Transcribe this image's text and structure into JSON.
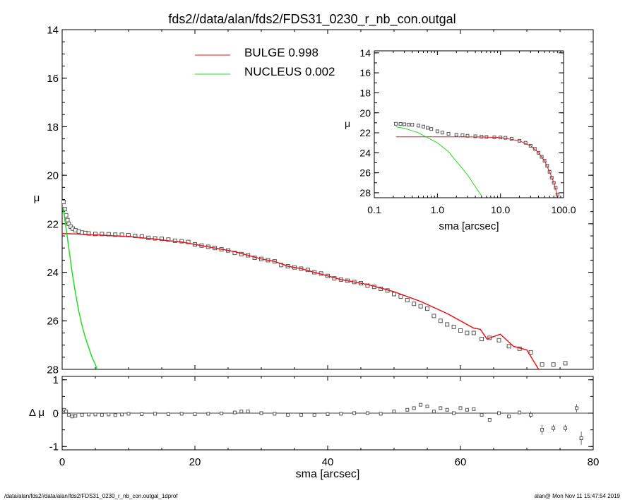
{
  "title": "fds2//data/alan/fds2/FDS31_0230_r_nb_con.outgal",
  "footer_left": "/data/alan/fds2//data/alan/fds2/FDS31_0230_r_nb_con.outgal_1dprof",
  "footer_right": "alan@  Mon Nov 11 15:47:54 2019",
  "colors": {
    "bulge": "#e8161c",
    "nucleus": "#22dd22",
    "data": "#555555",
    "axis": "#000000"
  },
  "legend": [
    {
      "label": "BULGE  0.998",
      "color": "#e8161c"
    },
    {
      "label": "NUCLEUS  0.002",
      "color": "#22dd22"
    }
  ],
  "chart_data": [
    {
      "panel": "main",
      "type": "scatter",
      "xlabel": "sma [arcsec]",
      "ylabel": "μ",
      "xlim": [
        0,
        80
      ],
      "ylim": [
        28,
        14
      ],
      "x_ticks": [
        "0",
        "20",
        "40",
        "60",
        "80"
      ],
      "y_ticks": [
        "14",
        "16",
        "18",
        "20",
        "22",
        "24",
        "26",
        "28"
      ],
      "series": [
        {
          "name": "data",
          "x": [
            0.2,
            0.4,
            0.6,
            0.8,
            1.0,
            1.3,
            1.6,
            2.0,
            2.5,
            3.0,
            3.5,
            4.0,
            5.0,
            6.0,
            7.0,
            8.0,
            9.0,
            10.0,
            11.0,
            12.0,
            13.0,
            14.0,
            15.0,
            16.0,
            17.0,
            18.0,
            19.0,
            20.0,
            21.0,
            22.0,
            23.0,
            24.0,
            25.0,
            26.0,
            27.0,
            28.0,
            29.0,
            30.0,
            31.0,
            32.0,
            33.0,
            34.0,
            35.0,
            36.0,
            37.0,
            38.0,
            39.0,
            40.0,
            41.0,
            42.0,
            43.0,
            44.0,
            45.0,
            46.0,
            47.0,
            48.0,
            49.0,
            50.0,
            51.0,
            52.0,
            53.0,
            54.0,
            55.0,
            56.0,
            57.0,
            58.0,
            59.0,
            60.0,
            61.0,
            62.0,
            63.2,
            64.4,
            65.8,
            67.3,
            68.9,
            70.6,
            72.3,
            74.0,
            75.8
          ],
          "y": [
            21.1,
            21.4,
            21.65,
            21.85,
            22.0,
            22.12,
            22.2,
            22.27,
            22.32,
            22.36,
            22.38,
            22.4,
            22.42,
            22.42,
            22.43,
            22.45,
            22.45,
            22.47,
            22.5,
            22.52,
            22.58,
            22.6,
            22.62,
            22.65,
            22.7,
            22.72,
            22.75,
            22.85,
            22.9,
            22.95,
            23.0,
            23.05,
            23.1,
            23.2,
            23.25,
            23.3,
            23.4,
            23.45,
            23.5,
            23.55,
            23.7,
            23.75,
            23.8,
            23.85,
            23.9,
            24.0,
            24.05,
            24.15,
            24.25,
            24.3,
            24.35,
            24.4,
            24.45,
            24.55,
            24.6,
            24.68,
            24.75,
            24.9,
            25.0,
            25.15,
            25.3,
            25.4,
            25.5,
            25.8,
            26.0,
            26.15,
            26.25,
            26.4,
            26.5,
            26.5,
            26.75,
            26.7,
            26.8,
            27.05,
            27.15,
            27.3,
            27.8,
            27.8,
            27.75
          ]
        },
        {
          "name": "BULGE",
          "x": [
            0,
            2,
            4,
            6,
            8,
            10,
            12,
            14,
            16,
            18,
            20,
            22,
            24,
            26,
            28,
            30,
            32,
            34,
            36,
            38,
            40,
            42,
            44,
            46,
            48,
            50,
            52,
            54,
            56,
            58,
            60,
            62,
            63,
            64,
            66,
            68,
            70,
            72
          ],
          "y": [
            22.4,
            22.42,
            22.45,
            22.47,
            22.5,
            22.52,
            22.58,
            22.63,
            22.7,
            22.75,
            22.85,
            22.95,
            23.05,
            23.15,
            23.3,
            23.45,
            23.55,
            23.75,
            23.85,
            24.0,
            24.15,
            24.3,
            24.4,
            24.5,
            24.65,
            24.8,
            25.0,
            25.2,
            25.45,
            25.7,
            26.0,
            26.3,
            26.35,
            26.75,
            26.55,
            27.05,
            27.2,
            28.1
          ]
        },
        {
          "name": "NUCLEUS",
          "x": [
            0.2,
            0.5,
            1.0,
            1.5,
            2.0,
            2.5,
            3.0,
            3.5,
            4.0,
            4.5,
            5.0,
            5.4
          ],
          "y": [
            21.4,
            22.0,
            23.0,
            24.0,
            24.85,
            25.6,
            26.2,
            26.7,
            27.1,
            27.5,
            27.8,
            28.1
          ]
        }
      ]
    },
    {
      "panel": "residual",
      "type": "scatter",
      "xlabel": "sma [arcsec]",
      "ylabel": "Δ μ",
      "xlim": [
        0,
        80
      ],
      "ylim": [
        -1.1,
        1.1
      ],
      "x_ticks": [
        "0",
        "20",
        "40",
        "60",
        "80"
      ],
      "y_ticks": [
        "1",
        "0",
        "-1"
      ],
      "series": [
        {
          "name": "residual",
          "x": [
            0.3,
            0.6,
            1.0,
            1.5,
            2.0,
            3.0,
            4.0,
            5.0,
            6.0,
            7.0,
            8.0,
            9.0,
            10.0,
            12.0,
            14.0,
            16.0,
            18.0,
            20.0,
            22.0,
            24.0,
            26.0,
            27.0,
            28.0,
            30.0,
            32.0,
            34.0,
            36.0,
            38.0,
            40.0,
            42.0,
            44.0,
            46.0,
            48.0,
            50.0,
            52.0,
            53.0,
            54.0,
            55.0,
            56.0,
            57.0,
            58.0,
            59.0,
            60.0,
            61.0,
            62.0,
            63.2,
            64.4,
            65.8,
            67.3,
            68.9,
            70.6,
            72.3,
            74.0,
            75.8,
            77.5,
            78.2
          ],
          "y": [
            0.1,
            0.05,
            -0.05,
            -0.1,
            -0.08,
            -0.05,
            -0.04,
            -0.04,
            -0.05,
            -0.04,
            -0.06,
            -0.04,
            -0.02,
            -0.03,
            -0.02,
            -0.03,
            -0.02,
            -0.03,
            -0.02,
            -0.01,
            0.02,
            0.05,
            0.05,
            0.0,
            -0.02,
            -0.05,
            -0.05,
            -0.05,
            -0.03,
            -0.02,
            0.0,
            0.0,
            -0.02,
            0.05,
            0.1,
            0.15,
            0.25,
            0.2,
            0.05,
            0.15,
            0.1,
            0.0,
            0.15,
            0.1,
            0.12,
            -0.05,
            -0.2,
            0.0,
            -0.1,
            0.02,
            -0.05,
            -0.5,
            -0.45,
            -0.45,
            0.15,
            -0.75
          ],
          "err": [
            0,
            0,
            0,
            0,
            0,
            0,
            0,
            0,
            0,
            0,
            0,
            0,
            0,
            0,
            0,
            0,
            0,
            0,
            0,
            0,
            0,
            0,
            0,
            0,
            0,
            0,
            0,
            0,
            0,
            0,
            0,
            0,
            0,
            0,
            0,
            0,
            0,
            0,
            0,
            0,
            0,
            0,
            0,
            0,
            0,
            0,
            0.04,
            0.05,
            0.06,
            0.05,
            0.1,
            0.15,
            0.1,
            0.1,
            0.12,
            0.2
          ]
        }
      ]
    },
    {
      "panel": "inset",
      "type": "scatter",
      "xscale": "log",
      "xlabel": "sma [arcsec]",
      "ylabel": "μ",
      "xlim": [
        0.1,
        100
      ],
      "ylim": [
        28.5,
        13.8
      ],
      "x_ticks": [
        "0.1",
        "1.0",
        "10.0",
        "100.0"
      ],
      "y_ticks": [
        "14",
        "16",
        "18",
        "20",
        "22",
        "24",
        "26",
        "28"
      ],
      "series": [
        {
          "name": "data",
          "x": [
            0.22,
            0.26,
            0.3,
            0.35,
            0.4,
            0.5,
            0.6,
            0.7,
            0.8,
            1.0,
            1.2,
            1.5,
            2.0,
            2.5,
            3.0,
            4.0,
            5.0,
            6.0,
            8.0,
            10.0,
            12.0,
            15.0,
            20.0,
            25.0,
            30.0,
            35.0,
            40.0,
            45.0,
            50.0,
            55.0,
            60.0,
            65.0,
            70.0,
            75.0,
            80.0
          ],
          "y": [
            21.1,
            21.12,
            21.15,
            21.18,
            21.2,
            21.28,
            21.38,
            21.5,
            21.62,
            21.85,
            21.98,
            22.1,
            22.2,
            22.25,
            22.3,
            22.35,
            22.4,
            22.42,
            22.45,
            22.47,
            22.5,
            22.6,
            22.8,
            23.0,
            23.3,
            23.6,
            24.0,
            24.4,
            24.8,
            25.3,
            25.9,
            26.5,
            27.0,
            27.5,
            28.2
          ]
        },
        {
          "name": "BULGE",
          "x": [
            0.22,
            0.5,
            1.0,
            2.0,
            5.0,
            10.0,
            20.0,
            30.0,
            40.0,
            50.0,
            60.0,
            70.0,
            80.0
          ],
          "y": [
            22.4,
            22.4,
            22.4,
            22.41,
            22.42,
            22.47,
            22.8,
            23.3,
            24.0,
            24.8,
            25.9,
            27.0,
            28.3
          ]
        },
        {
          "name": "NUCLEUS",
          "x": [
            0.22,
            0.3,
            0.4,
            0.5,
            0.7,
            1.0,
            1.5,
            2.0,
            3.0,
            4.0,
            5.0
          ],
          "y": [
            21.4,
            21.55,
            21.8,
            22.0,
            22.5,
            23.0,
            23.9,
            24.85,
            26.2,
            27.4,
            28.3
          ]
        }
      ]
    }
  ]
}
